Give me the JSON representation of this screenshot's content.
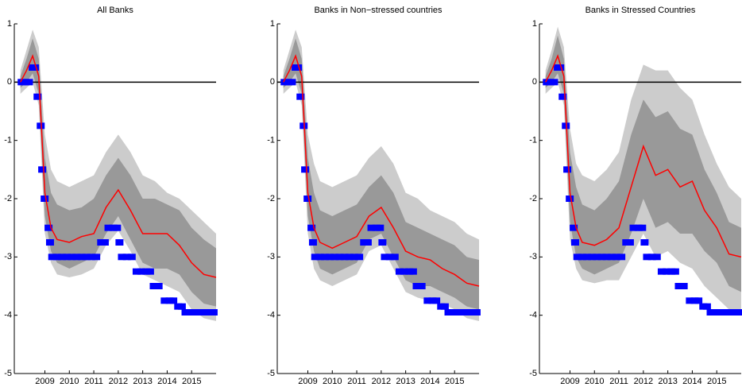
{
  "chart_data": [
    {
      "type": "line",
      "title": "All Banks",
      "xlim": [
        2007.75,
        2016.0
      ],
      "ylim": [
        -5,
        1
      ],
      "xticks": [
        2009,
        2010,
        2011,
        2012,
        2013,
        2014,
        2015
      ],
      "yticks": [
        -5,
        -4,
        -3,
        -2,
        -1,
        0,
        1
      ],
      "hline": 0,
      "hline_color": "#000000",
      "x": [
        2008.0,
        2008.25,
        2008.5,
        2008.75,
        2009.0,
        2009.25,
        2009.5,
        2010.0,
        2010.5,
        2011.0,
        2011.5,
        2012.0,
        2012.5,
        2013.0,
        2013.5,
        2014.0,
        2014.5,
        2015.0,
        2015.5,
        2016.0
      ],
      "bands": [
        {
          "color": "#cccccc",
          "upper": [
            0.2,
            0.55,
            0.9,
            0.6,
            -0.9,
            -1.5,
            -1.7,
            -1.8,
            -1.7,
            -1.6,
            -1.2,
            -0.9,
            -1.2,
            -1.6,
            -1.7,
            -1.9,
            -2.0,
            -2.2,
            -2.4,
            -2.6
          ],
          "lower": [
            -0.2,
            -0.1,
            0.0,
            -0.4,
            -2.6,
            -3.1,
            -3.3,
            -3.35,
            -3.3,
            -3.2,
            -2.8,
            -2.55,
            -2.9,
            -3.3,
            -3.4,
            -3.5,
            -3.6,
            -3.9,
            -4.05,
            -4.1
          ]
        },
        {
          "color": "#999999",
          "upper": [
            0.1,
            0.4,
            0.75,
            0.4,
            -1.3,
            -1.9,
            -2.1,
            -2.2,
            -2.15,
            -2.0,
            -1.6,
            -1.3,
            -1.6,
            -2.0,
            -2.0,
            -2.1,
            -2.2,
            -2.5,
            -2.7,
            -2.85
          ],
          "lower": [
            -0.1,
            0.0,
            0.15,
            -0.2,
            -2.3,
            -2.9,
            -3.1,
            -3.2,
            -3.1,
            -3.0,
            -2.6,
            -2.3,
            -2.7,
            -3.1,
            -3.2,
            -3.2,
            -3.3,
            -3.6,
            -3.8,
            -3.85
          ]
        }
      ],
      "series": [
        {
          "color": "#ff0000",
          "values": [
            0.0,
            0.2,
            0.45,
            0.1,
            -1.9,
            -2.5,
            -2.7,
            -2.75,
            -2.65,
            -2.6,
            -2.15,
            -1.85,
            -2.2,
            -2.6,
            -2.6,
            -2.6,
            -2.8,
            -3.1,
            -3.3,
            -3.35
          ]
        }
      ],
      "markers": {
        "color": "#0000ff",
        "x": [
          2008.05,
          2008.2,
          2008.35,
          2008.5,
          2008.6,
          2008.7,
          2008.83,
          2008.89,
          2008.99,
          2009.15,
          2009.21,
          2009.3,
          2009.5,
          2009.7,
          2009.9,
          2010.1,
          2010.3,
          2010.5,
          2010.7,
          2010.9,
          2011.1,
          2011.3,
          2011.45,
          2011.6,
          2011.8,
          2011.95,
          2012.05,
          2012.15,
          2012.35,
          2012.55,
          2012.75,
          2012.95,
          2013.15,
          2013.3,
          2013.45,
          2013.65,
          2013.9,
          2014.1,
          2014.25,
          2014.45,
          2014.6,
          2014.75,
          2014.95,
          2015.15,
          2015.35,
          2015.55,
          2015.75,
          2015.9
        ],
        "values": [
          0,
          0,
          0,
          0.25,
          0.25,
          -0.25,
          -0.75,
          -1.5,
          -2,
          -2.5,
          -2.75,
          -3,
          -3,
          -3,
          -3,
          -3,
          -3,
          -3,
          -3,
          -3,
          -3,
          -2.75,
          -2.75,
          -2.5,
          -2.5,
          -2.5,
          -2.75,
          -3,
          -3,
          -3,
          -3.25,
          -3.25,
          -3.25,
          -3.25,
          -3.5,
          -3.5,
          -3.75,
          -3.75,
          -3.75,
          -3.85,
          -3.85,
          -3.95,
          -3.95,
          -3.95,
          -3.95,
          -3.95,
          -3.95,
          -3.95
        ]
      }
    },
    {
      "type": "line",
      "title": "Banks in Non−stressed countries",
      "xlim": [
        2007.75,
        2016.0
      ],
      "ylim": [
        -5,
        1
      ],
      "xticks": [
        2009,
        2010,
        2011,
        2012,
        2013,
        2014,
        2015
      ],
      "yticks": [
        -5,
        -4,
        -3,
        -2,
        -1,
        0,
        1
      ],
      "hline": 0,
      "hline_color": "#000000",
      "x": [
        2008.0,
        2008.25,
        2008.5,
        2008.75,
        2009.0,
        2009.25,
        2009.5,
        2010.0,
        2010.5,
        2011.0,
        2011.5,
        2012.0,
        2012.5,
        2013.0,
        2013.5,
        2014.0,
        2014.5,
        2015.0,
        2015.5,
        2016.0
      ],
      "bands": [
        {
          "color": "#cccccc",
          "upper": [
            0.2,
            0.55,
            0.9,
            0.6,
            -0.9,
            -1.4,
            -1.7,
            -1.8,
            -1.7,
            -1.6,
            -1.3,
            -1.1,
            -1.4,
            -1.9,
            -2.0,
            -2.2,
            -2.3,
            -2.4,
            -2.6,
            -2.7
          ],
          "lower": [
            -0.2,
            -0.1,
            0.0,
            -0.4,
            -2.6,
            -3.2,
            -3.4,
            -3.5,
            -3.4,
            -3.3,
            -2.9,
            -2.8,
            -3.2,
            -3.6,
            -3.7,
            -3.75,
            -3.8,
            -3.9,
            -4.05,
            -4.1
          ]
        },
        {
          "color": "#999999",
          "upper": [
            0.1,
            0.4,
            0.75,
            0.4,
            -1.3,
            -1.9,
            -2.2,
            -2.3,
            -2.2,
            -2.1,
            -1.8,
            -1.6,
            -1.9,
            -2.4,
            -2.5,
            -2.6,
            -2.7,
            -2.8,
            -3.0,
            -3.05
          ],
          "lower": [
            -0.1,
            0.0,
            0.15,
            -0.2,
            -2.3,
            -2.9,
            -3.2,
            -3.3,
            -3.2,
            -3.1,
            -2.7,
            -2.6,
            -3.0,
            -3.4,
            -3.5,
            -3.5,
            -3.6,
            -3.7,
            -3.85,
            -3.9
          ]
        }
      ],
      "series": [
        {
          "color": "#ff0000",
          "values": [
            0.0,
            0.2,
            0.45,
            0.1,
            -1.9,
            -2.5,
            -2.75,
            -2.85,
            -2.75,
            -2.65,
            -2.3,
            -2.15,
            -2.5,
            -2.9,
            -3.0,
            -3.05,
            -3.2,
            -3.3,
            -3.45,
            -3.5
          ]
        }
      ],
      "markers": {
        "color": "#0000ff",
        "x": [
          2008.05,
          2008.2,
          2008.35,
          2008.5,
          2008.6,
          2008.7,
          2008.83,
          2008.89,
          2008.99,
          2009.15,
          2009.21,
          2009.3,
          2009.5,
          2009.7,
          2009.9,
          2010.1,
          2010.3,
          2010.5,
          2010.7,
          2010.9,
          2011.1,
          2011.3,
          2011.45,
          2011.6,
          2011.8,
          2011.95,
          2012.05,
          2012.15,
          2012.35,
          2012.55,
          2012.75,
          2012.95,
          2013.15,
          2013.3,
          2013.45,
          2013.65,
          2013.9,
          2014.1,
          2014.25,
          2014.45,
          2014.6,
          2014.75,
          2014.95,
          2015.15,
          2015.35,
          2015.55,
          2015.75,
          2015.9
        ],
        "values": [
          0,
          0,
          0,
          0.25,
          0.25,
          -0.25,
          -0.75,
          -1.5,
          -2,
          -2.5,
          -2.75,
          -3,
          -3,
          -3,
          -3,
          -3,
          -3,
          -3,
          -3,
          -3,
          -3,
          -2.75,
          -2.75,
          -2.5,
          -2.5,
          -2.5,
          -2.75,
          -3,
          -3,
          -3,
          -3.25,
          -3.25,
          -3.25,
          -3.25,
          -3.5,
          -3.5,
          -3.75,
          -3.75,
          -3.75,
          -3.85,
          -3.85,
          -3.95,
          -3.95,
          -3.95,
          -3.95,
          -3.95,
          -3.95,
          -3.95
        ]
      }
    },
    {
      "type": "line",
      "title": "Banks in Stressed Countries",
      "xlim": [
        2007.75,
        2016.0
      ],
      "ylim": [
        -5,
        1
      ],
      "xticks": [
        2009,
        2010,
        2011,
        2012,
        2013,
        2014,
        2015
      ],
      "yticks": [
        -5,
        -4,
        -3,
        -2,
        -1,
        0,
        1
      ],
      "hline": 0,
      "hline_color": "#000000",
      "x": [
        2008.0,
        2008.25,
        2008.5,
        2008.75,
        2009.0,
        2009.25,
        2009.5,
        2010.0,
        2010.5,
        2011.0,
        2011.5,
        2012.0,
        2012.5,
        2013.0,
        2013.5,
        2014.0,
        2014.5,
        2015.0,
        2015.5,
        2016.0
      ],
      "bands": [
        {
          "color": "#cccccc",
          "upper": [
            0.2,
            0.55,
            0.95,
            0.6,
            -0.8,
            -1.4,
            -1.6,
            -1.7,
            -1.5,
            -1.2,
            -0.3,
            0.3,
            0.2,
            0.2,
            -0.1,
            -0.3,
            -0.9,
            -1.4,
            -1.8,
            -2.0
          ],
          "lower": [
            -0.2,
            -0.1,
            0.0,
            -0.4,
            -2.7,
            -3.2,
            -3.4,
            -3.45,
            -3.4,
            -3.4,
            -3.0,
            -2.6,
            -3.0,
            -2.9,
            -3.1,
            -3.2,
            -3.5,
            -3.7,
            -3.9,
            -4.0
          ]
        },
        {
          "color": "#999999",
          "upper": [
            0.1,
            0.4,
            0.8,
            0.4,
            -1.2,
            -1.8,
            -2.1,
            -2.2,
            -2.0,
            -1.7,
            -0.9,
            -0.3,
            -0.6,
            -0.5,
            -0.8,
            -0.9,
            -1.5,
            -1.9,
            -2.4,
            -2.5
          ],
          "lower": [
            -0.1,
            0.0,
            0.15,
            -0.2,
            -2.4,
            -3.0,
            -3.2,
            -3.3,
            -3.2,
            -3.1,
            -2.6,
            -2.0,
            -2.5,
            -2.4,
            -2.6,
            -2.6,
            -2.9,
            -3.1,
            -3.5,
            -3.6
          ]
        }
      ],
      "series": [
        {
          "color": "#ff0000",
          "values": [
            0.0,
            0.2,
            0.45,
            0.1,
            -1.9,
            -2.5,
            -2.75,
            -2.8,
            -2.7,
            -2.5,
            -1.8,
            -1.1,
            -1.6,
            -1.5,
            -1.8,
            -1.7,
            -2.2,
            -2.5,
            -2.95,
            -3.0
          ]
        }
      ],
      "markers": {
        "color": "#0000ff",
        "x": [
          2008.05,
          2008.2,
          2008.35,
          2008.5,
          2008.6,
          2008.7,
          2008.83,
          2008.89,
          2008.99,
          2009.15,
          2009.21,
          2009.3,
          2009.5,
          2009.7,
          2009.9,
          2010.1,
          2010.3,
          2010.5,
          2010.7,
          2010.9,
          2011.1,
          2011.3,
          2011.45,
          2011.6,
          2011.8,
          2011.95,
          2012.05,
          2012.15,
          2012.35,
          2012.55,
          2012.75,
          2012.95,
          2013.15,
          2013.3,
          2013.45,
          2013.65,
          2013.9,
          2014.1,
          2014.25,
          2014.45,
          2014.6,
          2014.75,
          2014.95,
          2015.15,
          2015.35,
          2015.55,
          2015.75,
          2015.9
        ],
        "values": [
          0,
          0,
          0,
          0.25,
          0.25,
          -0.25,
          -0.75,
          -1.5,
          -2,
          -2.5,
          -2.75,
          -3,
          -3,
          -3,
          -3,
          -3,
          -3,
          -3,
          -3,
          -3,
          -3,
          -2.75,
          -2.75,
          -2.5,
          -2.5,
          -2.5,
          -2.75,
          -3,
          -3,
          -3,
          -3.25,
          -3.25,
          -3.25,
          -3.25,
          -3.5,
          -3.5,
          -3.75,
          -3.75,
          -3.75,
          -3.85,
          -3.85,
          -3.95,
          -3.95,
          -3.95,
          -3.95,
          -3.95,
          -3.95,
          -3.95
        ]
      }
    }
  ]
}
